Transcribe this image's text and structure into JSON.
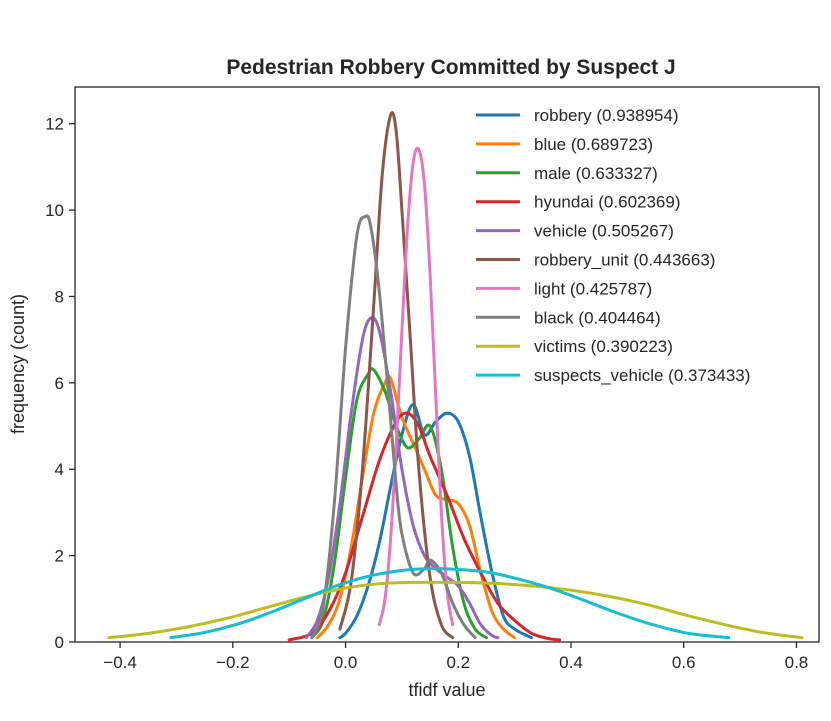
{
  "chart_data": {
    "type": "line",
    "title": "Pedestrian Robbery Committed by Suspect J",
    "xlabel": "tfidf value",
    "ylabel": "frequency (count)",
    "xlim": [
      -0.48,
      0.84
    ],
    "ylim": [
      0,
      12.85
    ],
    "xticks": [
      -0.4,
      -0.2,
      0.0,
      0.2,
      0.4,
      0.6,
      0.8
    ],
    "xtick_labels": [
      "−0.4",
      "−0.2",
      "0.0",
      "0.2",
      "0.4",
      "0.6",
      "0.8"
    ],
    "yticks": [
      0,
      2,
      4,
      6,
      8,
      10,
      12
    ],
    "ytick_labels": [
      "0",
      "2",
      "4",
      "6",
      "8",
      "10",
      "12"
    ],
    "legend_position": "top-right",
    "series": [
      {
        "name": "robbery (0.938954)",
        "color": "#1f77b4",
        "x": [
          -0.01,
          0.0,
          0.02,
          0.04,
          0.06,
          0.08,
          0.1,
          0.12,
          0.14,
          0.16,
          0.18,
          0.2,
          0.22,
          0.24,
          0.26,
          0.28,
          0.3,
          0.33
        ],
        "y": [
          0.1,
          0.2,
          0.6,
          1.3,
          2.3,
          3.6,
          4.8,
          5.5,
          4.8,
          5.1,
          5.3,
          5.1,
          4.3,
          2.9,
          1.6,
          0.6,
          0.3,
          0.1
        ]
      },
      {
        "name": "blue (0.689723)",
        "color": "#ff7f0e",
        "x": [
          -0.05,
          -0.03,
          -0.01,
          0.01,
          0.03,
          0.05,
          0.07,
          0.08,
          0.1,
          0.12,
          0.14,
          0.16,
          0.18,
          0.2,
          0.22,
          0.24,
          0.26,
          0.28,
          0.3
        ],
        "y": [
          0.1,
          0.4,
          1.0,
          2.2,
          3.8,
          5.3,
          6.0,
          6.1,
          5.2,
          4.6,
          4.0,
          3.4,
          3.3,
          3.2,
          2.7,
          1.6,
          0.7,
          0.3,
          0.1
        ]
      },
      {
        "name": "male (0.633327)",
        "color": "#2ca02c",
        "x": [
          -0.06,
          -0.04,
          -0.02,
          0.0,
          0.02,
          0.04,
          0.05,
          0.07,
          0.09,
          0.11,
          0.13,
          0.15,
          0.17,
          0.19,
          0.21,
          0.23,
          0.25
        ],
        "y": [
          0.1,
          0.5,
          1.8,
          3.8,
          5.6,
          6.2,
          6.3,
          5.8,
          5.0,
          4.5,
          4.7,
          5.0,
          4.0,
          2.2,
          0.9,
          0.3,
          0.1
        ]
      },
      {
        "name": "hyundai (0.602369)",
        "color": "#d62728",
        "x": [
          -0.1,
          -0.06,
          -0.03,
          0.0,
          0.03,
          0.06,
          0.09,
          0.11,
          0.13,
          0.15,
          0.18,
          0.21,
          0.24,
          0.27,
          0.3,
          0.33,
          0.36,
          0.38
        ],
        "y": [
          0.05,
          0.2,
          0.7,
          1.6,
          2.9,
          4.2,
          5.1,
          5.3,
          5.0,
          4.3,
          3.4,
          2.4,
          1.6,
          0.9,
          0.5,
          0.2,
          0.08,
          0.05
        ]
      },
      {
        "name": "vehicle (0.505267)",
        "color": "#9467bd",
        "x": [
          -0.07,
          -0.05,
          -0.03,
          -0.01,
          0.01,
          0.03,
          0.045,
          0.06,
          0.08,
          0.1,
          0.12,
          0.14,
          0.16,
          0.18,
          0.2,
          0.22,
          0.24,
          0.26,
          0.27
        ],
        "y": [
          0.1,
          0.5,
          1.5,
          3.2,
          5.3,
          7.0,
          7.5,
          7.2,
          5.8,
          4.0,
          2.7,
          2.0,
          1.7,
          1.5,
          1.3,
          0.9,
          0.4,
          0.15,
          0.1
        ]
      },
      {
        "name": "robbery_unit (0.443663)",
        "color": "#8c564b",
        "x": [
          -0.01,
          0.01,
          0.03,
          0.05,
          0.065,
          0.08,
          0.09,
          0.1,
          0.115,
          0.13,
          0.15,
          0.17,
          0.19
        ],
        "y": [
          0.3,
          1.4,
          4.0,
          7.8,
          10.8,
          12.2,
          11.8,
          10.0,
          7.0,
          4.0,
          1.5,
          0.4,
          0.1
        ]
      },
      {
        "name": "light (0.425787)",
        "color": "#e377c2",
        "x": [
          0.06,
          0.07,
          0.08,
          0.09,
          0.1,
          0.11,
          0.12,
          0.13,
          0.14,
          0.15,
          0.16,
          0.17,
          0.18,
          0.19
        ],
        "y": [
          0.4,
          1.0,
          2.4,
          4.6,
          7.2,
          9.6,
          11.1,
          11.4,
          10.6,
          8.5,
          5.7,
          3.0,
          1.2,
          0.4
        ]
      },
      {
        "name": "black (0.404464)",
        "color": "#7f7f7f",
        "x": [
          -0.06,
          -0.04,
          -0.02,
          0.0,
          0.02,
          0.035,
          0.045,
          0.06,
          0.075,
          0.09,
          0.1,
          0.12,
          0.14,
          0.15,
          0.17,
          0.19,
          0.21,
          0.23
        ],
        "y": [
          0.1,
          0.8,
          3.2,
          6.8,
          9.4,
          9.85,
          9.6,
          8.1,
          5.9,
          3.6,
          2.5,
          1.6,
          1.7,
          1.9,
          1.6,
          0.9,
          0.4,
          0.1
        ]
      },
      {
        "name": "victims (0.390223)",
        "color": "#bcbd22",
        "x": [
          -0.42,
          -0.35,
          -0.28,
          -0.21,
          -0.14,
          -0.07,
          0.0,
          0.06,
          0.12,
          0.19,
          0.26,
          0.33,
          0.4,
          0.47,
          0.54,
          0.61,
          0.68,
          0.74,
          0.81
        ],
        "y": [
          0.1,
          0.2,
          0.35,
          0.55,
          0.8,
          1.05,
          1.25,
          1.35,
          1.38,
          1.38,
          1.36,
          1.3,
          1.2,
          1.05,
          0.85,
          0.6,
          0.38,
          0.22,
          0.1
        ]
      },
      {
        "name": "suspects_vehicle (0.373433)",
        "color": "#17becf",
        "x": [
          -0.31,
          -0.25,
          -0.19,
          -0.13,
          -0.07,
          -0.01,
          0.05,
          0.11,
          0.16,
          0.2,
          0.25,
          0.3,
          0.36,
          0.42,
          0.48,
          0.54,
          0.6,
          0.64,
          0.68
        ],
        "y": [
          0.1,
          0.22,
          0.42,
          0.7,
          1.02,
          1.33,
          1.55,
          1.67,
          1.7,
          1.68,
          1.62,
          1.48,
          1.26,
          0.98,
          0.68,
          0.42,
          0.22,
          0.15,
          0.1
        ]
      }
    ]
  }
}
